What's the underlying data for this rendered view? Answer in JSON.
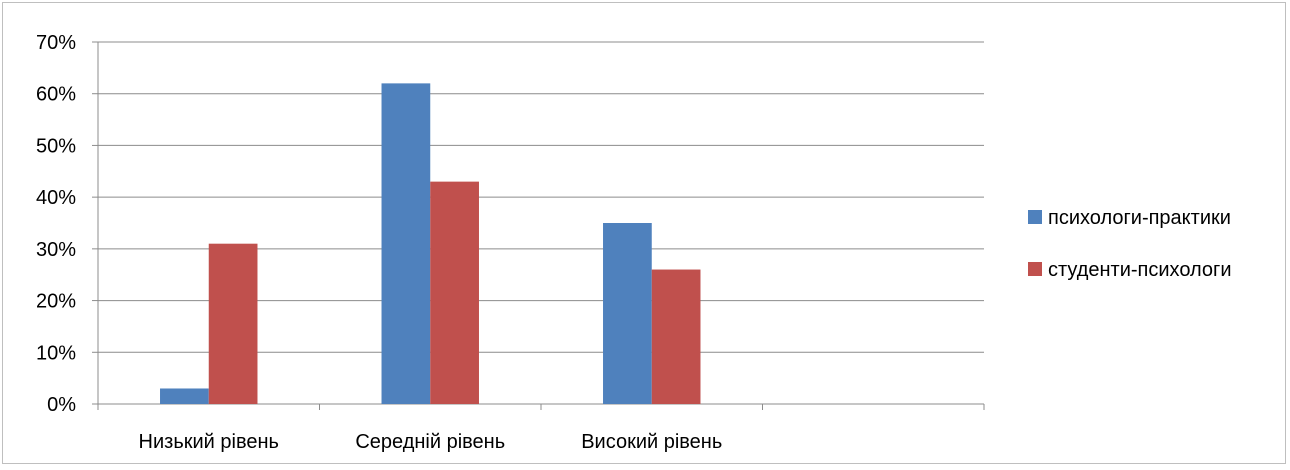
{
  "chart_data": {
    "type": "bar",
    "title": "",
    "xlabel": "",
    "ylabel": "",
    "categories": [
      "Низький рівень",
      "Середній рівень",
      "Високий рівень",
      ""
    ],
    "series": [
      {
        "name": "психологи-практики",
        "color": "#4f81bd",
        "values": [
          3,
          62,
          35,
          null
        ]
      },
      {
        "name": "студенти-психологи",
        "color": "#c0504d",
        "values": [
          31,
          43,
          26,
          null
        ]
      }
    ],
    "ylim": [
      0,
      70
    ],
    "yticks": [
      "0%",
      "10%",
      "20%",
      "30%",
      "40%",
      "50%",
      "60%",
      "70%"
    ],
    "grid": true,
    "legend_position": "right"
  }
}
